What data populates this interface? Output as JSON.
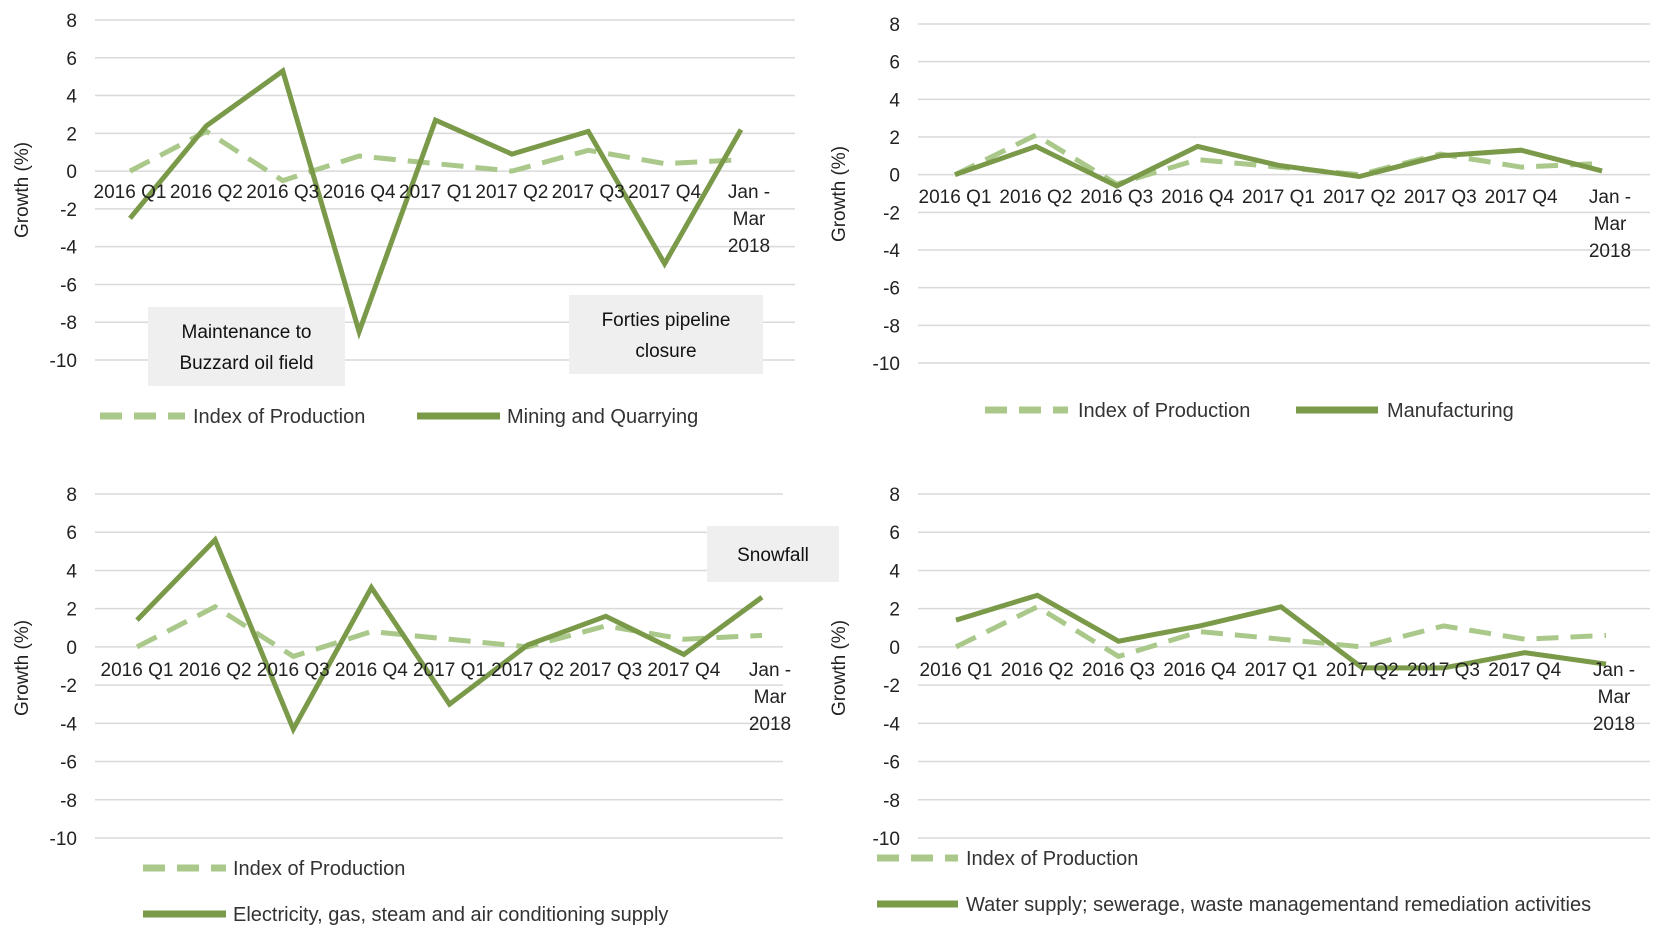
{
  "colors": {
    "index": "#a9c88a",
    "sector": "#7a9a4a",
    "grid": "#d9d9d9",
    "annotation_bg": "#efefef"
  },
  "chart_data": [
    {
      "type": "line",
      "ylabel": "Growth (%)",
      "ylim": [
        -10,
        8
      ],
      "yticks": [
        8,
        6,
        4,
        2,
        0,
        -2,
        -4,
        -6,
        -8,
        -10
      ],
      "categories": [
        [
          "2016 Q1"
        ],
        [
          "2016 Q2"
        ],
        [
          "2016 Q3"
        ],
        [
          "2016 Q4"
        ],
        [
          "2017 Q1"
        ],
        [
          "2017 Q2"
        ],
        [
          "2017 Q3"
        ],
        [
          "2017 Q4"
        ],
        [
          "Jan -",
          "Mar",
          "2018"
        ]
      ],
      "series": [
        {
          "name": "Index of Production",
          "style": "dashed",
          "values": [
            0.0,
            2.1,
            -0.5,
            0.8,
            0.4,
            0.0,
            1.1,
            0.4,
            0.6
          ]
        },
        {
          "name": "Mining and Quarrying",
          "style": "solid",
          "values": [
            -2.5,
            2.4,
            5.3,
            -8.5,
            2.7,
            0.9,
            2.1,
            -4.9,
            2.2
          ]
        }
      ],
      "annotations": [
        {
          "lines": [
            "Maintenance to",
            "Buzzard oil field"
          ]
        },
        {
          "lines": [
            "Forties pipeline",
            "closure"
          ]
        }
      ],
      "legend": "bottom"
    },
    {
      "type": "line",
      "ylabel": "Growth (%)",
      "ylim": [
        -10,
        8
      ],
      "yticks": [
        8,
        6,
        4,
        2,
        0,
        -2,
        -4,
        -6,
        -8,
        -10
      ],
      "categories": [
        [
          "2016 Q1"
        ],
        [
          "2016 Q2"
        ],
        [
          "2016 Q3"
        ],
        [
          "2016 Q4"
        ],
        [
          "2017 Q1"
        ],
        [
          "2017 Q2"
        ],
        [
          "2017 Q3"
        ],
        [
          "2017 Q4"
        ],
        [
          "Jan -",
          "Mar",
          "2018"
        ]
      ],
      "series": [
        {
          "name": "Index of Production",
          "style": "dashed",
          "values": [
            0.0,
            2.1,
            -0.5,
            0.8,
            0.4,
            0.0,
            1.1,
            0.4,
            0.6
          ]
        },
        {
          "name": "Manufacturing",
          "style": "solid",
          "values": [
            0.0,
            1.5,
            -0.6,
            1.5,
            0.5,
            -0.1,
            1.0,
            1.3,
            0.2
          ]
        }
      ],
      "annotations": [],
      "legend": "bottom"
    },
    {
      "type": "line",
      "ylabel": "Growth (%)",
      "ylim": [
        -10,
        8
      ],
      "yticks": [
        8,
        6,
        4,
        2,
        0,
        -2,
        -4,
        -6,
        -8,
        -10
      ],
      "categories": [
        [
          "2016 Q1"
        ],
        [
          "2016 Q2"
        ],
        [
          "2016 Q3"
        ],
        [
          "2016 Q4"
        ],
        [
          "2017 Q1"
        ],
        [
          "2017 Q2"
        ],
        [
          "2017 Q3"
        ],
        [
          "2017 Q4"
        ],
        [
          "Jan -",
          "Mar",
          "2018"
        ]
      ],
      "series": [
        {
          "name": "Index of Production",
          "style": "dashed",
          "values": [
            0.0,
            2.1,
            -0.5,
            0.8,
            0.4,
            0.0,
            1.1,
            0.4,
            0.6
          ]
        },
        {
          "name": "Electricity, gas, steam and air conditioning supply",
          "style": "solid",
          "values": [
            1.4,
            5.6,
            -4.3,
            3.1,
            -3.0,
            0.1,
            1.6,
            -0.4,
            2.6
          ]
        }
      ],
      "annotations": [
        {
          "lines": [
            "Snowfall"
          ]
        }
      ],
      "legend": "bottom"
    },
    {
      "type": "line",
      "ylabel": "Growth (%)",
      "ylim": [
        -10,
        8
      ],
      "yticks": [
        8,
        6,
        4,
        2,
        0,
        -2,
        -4,
        -6,
        -8,
        -10
      ],
      "categories": [
        [
          "2016 Q1"
        ],
        [
          "2016 Q2"
        ],
        [
          "2016 Q3"
        ],
        [
          "2016 Q4"
        ],
        [
          "2017 Q1"
        ],
        [
          "2017 Q2"
        ],
        [
          "2017 Q3"
        ],
        [
          "2017 Q4"
        ],
        [
          "Jan -",
          "Mar",
          "2018"
        ]
      ],
      "series": [
        {
          "name": "Index of Production",
          "style": "dashed",
          "values": [
            0.0,
            2.1,
            -0.5,
            0.8,
            0.4,
            0.0,
            1.1,
            0.4,
            0.6
          ]
        },
        {
          "name": "Water supply; sewerage, waste managementand remediation activities",
          "style": "solid",
          "values": [
            1.4,
            2.7,
            0.3,
            1.1,
            2.1,
            -1.1,
            -1.1,
            -0.3,
            -0.9
          ]
        }
      ],
      "annotations": [],
      "legend": "bottom"
    }
  ]
}
